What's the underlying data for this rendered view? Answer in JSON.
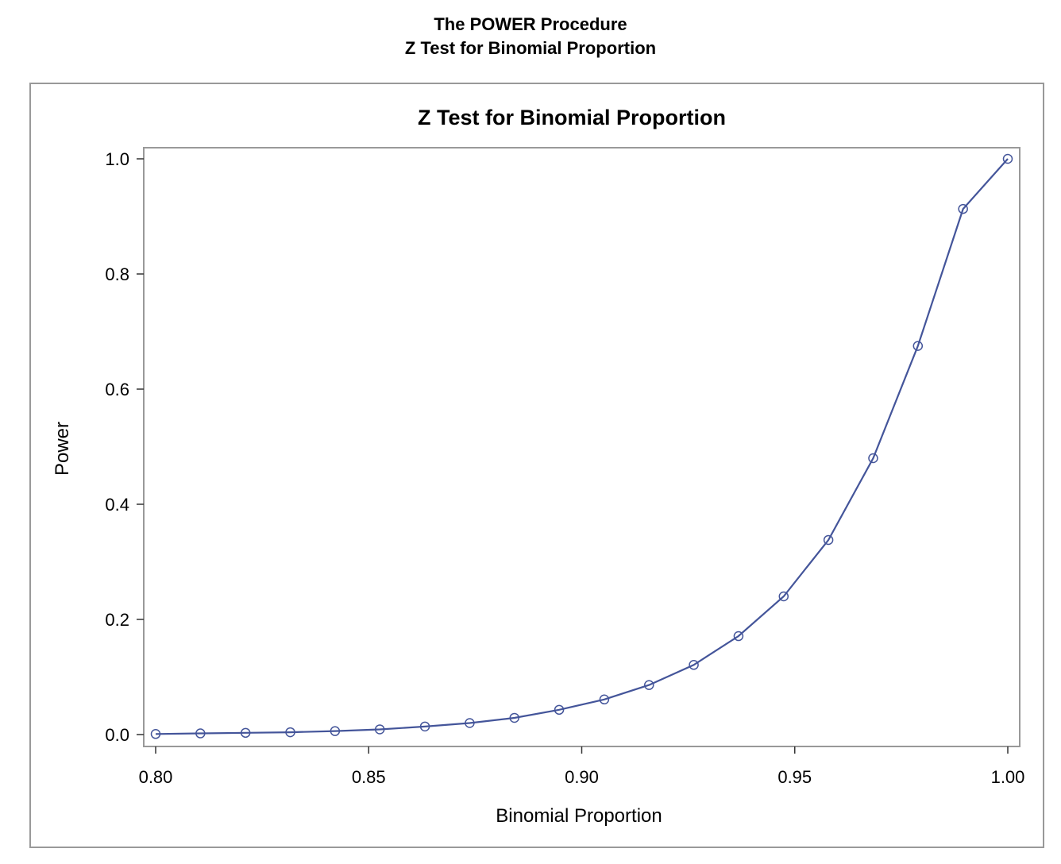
{
  "page": {
    "title_line1": "The POWER Procedure",
    "title_line2": "Z Test for Binomial Proportion"
  },
  "chart_data": {
    "type": "line",
    "title": "Z Test for Binomial Proportion",
    "xlabel": "Binomial Proportion",
    "ylabel": "Power",
    "xlim": [
      0.8,
      1.0
    ],
    "ylim": [
      0.0,
      1.0
    ],
    "x_ticks": [
      "0.80",
      "0.85",
      "0.90",
      "0.95",
      "1.00"
    ],
    "y_ticks": [
      "0.0",
      "0.2",
      "0.4",
      "0.6",
      "0.8",
      "1.0"
    ],
    "grid": false,
    "markers": "open-circle",
    "line_color": "#44559a",
    "series": [
      {
        "x": [
          0.8,
          0.8105,
          0.8211,
          0.8316,
          0.8421,
          0.8526,
          0.8632,
          0.8737,
          0.8842,
          0.8947,
          0.9053,
          0.9158,
          0.9263,
          0.9368,
          0.9474,
          0.9579,
          0.9684,
          0.9789,
          0.9895,
          1.0
        ],
        "y": [
          0.001,
          0.002,
          0.003,
          0.004,
          0.006,
          0.009,
          0.014,
          0.02,
          0.029,
          0.043,
          0.061,
          0.086,
          0.121,
          0.171,
          0.24,
          0.338,
          0.48,
          0.675,
          0.913,
          1.0
        ]
      }
    ]
  }
}
